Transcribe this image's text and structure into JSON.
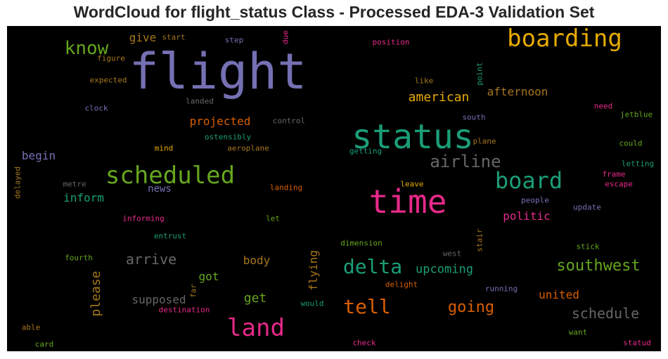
{
  "title": "WordCloud for flight_status Class - Processed EDA-3 Validation Set",
  "chart_data": {
    "type": "wordcloud",
    "background": "#000000",
    "colormap": "Dark2",
    "words": [
      {
        "text": "flight",
        "weight": 100,
        "color": "#7570b3"
      },
      {
        "text": "status",
        "weight": 70,
        "color": "#1b9e77"
      },
      {
        "text": "time",
        "weight": 68,
        "color": "#e7298a"
      },
      {
        "text": "boarding",
        "weight": 55,
        "color": "#e6ab02"
      },
      {
        "text": "scheduled",
        "weight": 55,
        "color": "#66a61e"
      },
      {
        "text": "board",
        "weight": 50,
        "color": "#1b9e77"
      },
      {
        "text": "land",
        "weight": 50,
        "color": "#e7298a"
      },
      {
        "text": "delta",
        "weight": 44,
        "color": "#1b9e77"
      },
      {
        "text": "tell",
        "weight": 44,
        "color": "#d95f02"
      },
      {
        "text": "know",
        "weight": 38,
        "color": "#66a61e"
      },
      {
        "text": "airline",
        "weight": 36,
        "color": "#666666"
      },
      {
        "text": "southwest",
        "weight": 34,
        "color": "#66a61e"
      },
      {
        "text": "going",
        "weight": 34,
        "color": "#d95f02"
      },
      {
        "text": "schedule",
        "weight": 32,
        "color": "#666666"
      },
      {
        "text": "arrive",
        "weight": 30,
        "color": "#666666"
      },
      {
        "text": "american",
        "weight": 28,
        "color": "#e6ab02"
      },
      {
        "text": "please",
        "weight": 26,
        "color": "#a6761d"
      },
      {
        "text": "upcoming",
        "weight": 26,
        "color": "#1b9e77"
      },
      {
        "text": "afternoon",
        "weight": 24,
        "color": "#a6761d"
      },
      {
        "text": "projected",
        "weight": 24,
        "color": "#d95f02"
      },
      {
        "text": "supposed",
        "weight": 24,
        "color": "#666666"
      },
      {
        "text": "united",
        "weight": 24,
        "color": "#d95f02"
      },
      {
        "text": "get",
        "weight": 24,
        "color": "#66a61e"
      },
      {
        "text": "flying",
        "weight": 22,
        "color": "#a6761d"
      },
      {
        "text": "begin",
        "weight": 22,
        "color": "#7570b3"
      },
      {
        "text": "inform",
        "weight": 22,
        "color": "#1b9e77"
      },
      {
        "text": "politic",
        "weight": 22,
        "color": "#e7298a"
      },
      {
        "text": "give",
        "weight": 20,
        "color": "#a6761d"
      },
      {
        "text": "body",
        "weight": 20,
        "color": "#a6761d"
      },
      {
        "text": "got",
        "weight": 20,
        "color": "#66a61e"
      },
      {
        "text": "news",
        "weight": 18,
        "color": "#7570b3"
      },
      {
        "text": "start",
        "weight": 12,
        "color": "#a6761d"
      },
      {
        "text": "step",
        "weight": 12,
        "color": "#7570b3"
      },
      {
        "text": "due",
        "weight": 12,
        "color": "#e7298a"
      },
      {
        "text": "position",
        "weight": 12,
        "color": "#e7298a"
      },
      {
        "text": "figure",
        "weight": 12,
        "color": "#a6761d"
      },
      {
        "text": "point",
        "weight": 12,
        "color": "#1b9e77"
      },
      {
        "text": "expected",
        "weight": 12,
        "color": "#a6761d"
      },
      {
        "text": "like",
        "weight": 12,
        "color": "#a6761d"
      },
      {
        "text": "landed",
        "weight": 12,
        "color": "#666666"
      },
      {
        "text": "clock",
        "weight": 12,
        "color": "#7570b3"
      },
      {
        "text": "need",
        "weight": 12,
        "color": "#e7298a"
      },
      {
        "text": "south",
        "weight": 12,
        "color": "#7570b3"
      },
      {
        "text": "jetblue",
        "weight": 12,
        "color": "#66a61e"
      },
      {
        "text": "control",
        "weight": 12,
        "color": "#666666"
      },
      {
        "text": "ostensibly",
        "weight": 12,
        "color": "#1b9e77"
      },
      {
        "text": "plane",
        "weight": 12,
        "color": "#a6761d"
      },
      {
        "text": "could",
        "weight": 12,
        "color": "#66a61e"
      },
      {
        "text": "mind",
        "weight": 12,
        "color": "#e6ab02"
      },
      {
        "text": "aeroplane",
        "weight": 12,
        "color": "#a6761d"
      },
      {
        "text": "getting",
        "weight": 12,
        "color": "#1b9e77"
      },
      {
        "text": "letting",
        "weight": 12,
        "color": "#1b9e77"
      },
      {
        "text": "delayed",
        "weight": 12,
        "color": "#a6761d"
      },
      {
        "text": "frame",
        "weight": 12,
        "color": "#e7298a"
      },
      {
        "text": "metre",
        "weight": 12,
        "color": "#666666"
      },
      {
        "text": "landing",
        "weight": 12,
        "color": "#d95f02"
      },
      {
        "text": "leave",
        "weight": 12,
        "color": "#e6ab02"
      },
      {
        "text": "escape",
        "weight": 12,
        "color": "#e7298a"
      },
      {
        "text": "people",
        "weight": 12,
        "color": "#7570b3"
      },
      {
        "text": "update",
        "weight": 12,
        "color": "#7570b3"
      },
      {
        "text": "informing",
        "weight": 12,
        "color": "#e7298a"
      },
      {
        "text": "let",
        "weight": 12,
        "color": "#66a61e"
      },
      {
        "text": "entrust",
        "weight": 12,
        "color": "#1b9e77"
      },
      {
        "text": "dimension",
        "weight": 12,
        "color": "#66a61e"
      },
      {
        "text": "stick",
        "weight": 12,
        "color": "#66a61e"
      },
      {
        "text": "stair",
        "weight": 12,
        "color": "#a6761d"
      },
      {
        "text": "west",
        "weight": 12,
        "color": "#666666"
      },
      {
        "text": "fourth",
        "weight": 12,
        "color": "#66a61e"
      },
      {
        "text": "far",
        "weight": 12,
        "color": "#a6761d"
      },
      {
        "text": "delight",
        "weight": 12,
        "color": "#d95f02"
      },
      {
        "text": "running",
        "weight": 12,
        "color": "#7570b3"
      },
      {
        "text": "would",
        "weight": 12,
        "color": "#1b9e77"
      },
      {
        "text": "destination",
        "weight": 12,
        "color": "#e7298a"
      },
      {
        "text": "able",
        "weight": 12,
        "color": "#a6761d"
      },
      {
        "text": "want",
        "weight": 12,
        "color": "#66a61e"
      },
      {
        "text": "card",
        "weight": 12,
        "color": "#66a61e"
      },
      {
        "text": "check",
        "weight": 12,
        "color": "#e7298a"
      },
      {
        "text": "statud",
        "weight": 12,
        "color": "#e7298a"
      }
    ]
  }
}
